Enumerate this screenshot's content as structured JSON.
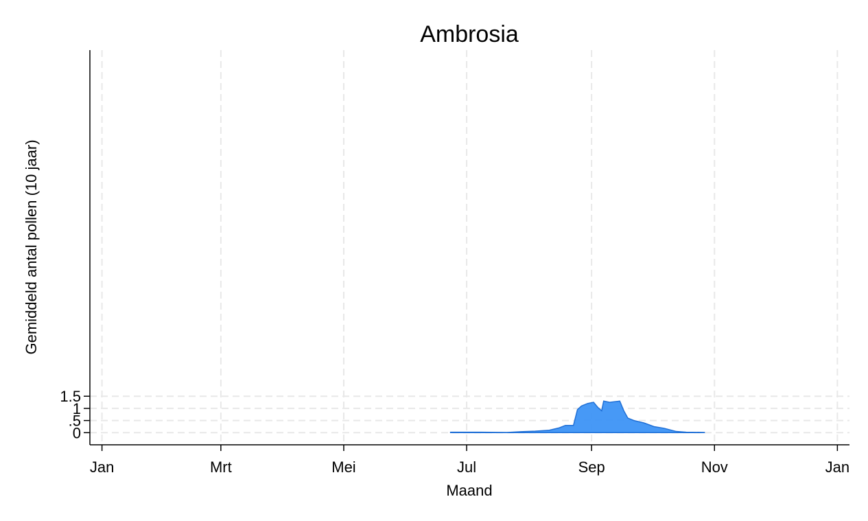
{
  "chart_data": {
    "type": "area",
    "title": "Ambrosia",
    "x_label": "Maand",
    "y_label": "Gemiddeld antal pollen (10 jaar)",
    "series": [
      {
        "color": "#3d94f5",
        "x": [
          174,
          189,
          202,
          209,
          216,
          223,
          228,
          231,
          235,
          237,
          239,
          242,
          245,
          247,
          249,
          250,
          253,
          258,
          260,
          262,
          265,
          270,
          275,
          280,
          286,
          291,
          300
        ],
        "values": [
          0.02,
          0.02,
          0.01,
          0.04,
          0.06,
          0.1,
          0.2,
          0.3,
          0.3,
          0.95,
          1.1,
          1.2,
          1.25,
          1.05,
          0.9,
          1.3,
          1.25,
          1.3,
          0.9,
          0.6,
          0.5,
          0.4,
          0.25,
          0.18,
          0.05,
          0.02,
          0.01
        ]
      }
    ],
    "xlim": [
      -5,
      372
    ],
    "ylim": [
      -0.5,
      15.75
    ],
    "xticks": [
      {
        "value": 1,
        "label": "Jan"
      },
      {
        "value": 60,
        "label": "Mrt"
      },
      {
        "value": 121,
        "label": "Mei"
      },
      {
        "value": 182,
        "label": "Jul"
      },
      {
        "value": 244,
        "label": "Sep"
      },
      {
        "value": 305,
        "label": "Nov"
      },
      {
        "value": 366,
        "label": "Jan"
      }
    ],
    "yticks": [
      0,
      {
        "value": 0.5,
        "label": ".5"
      },
      1,
      1.5
    ],
    "grid": true
  }
}
